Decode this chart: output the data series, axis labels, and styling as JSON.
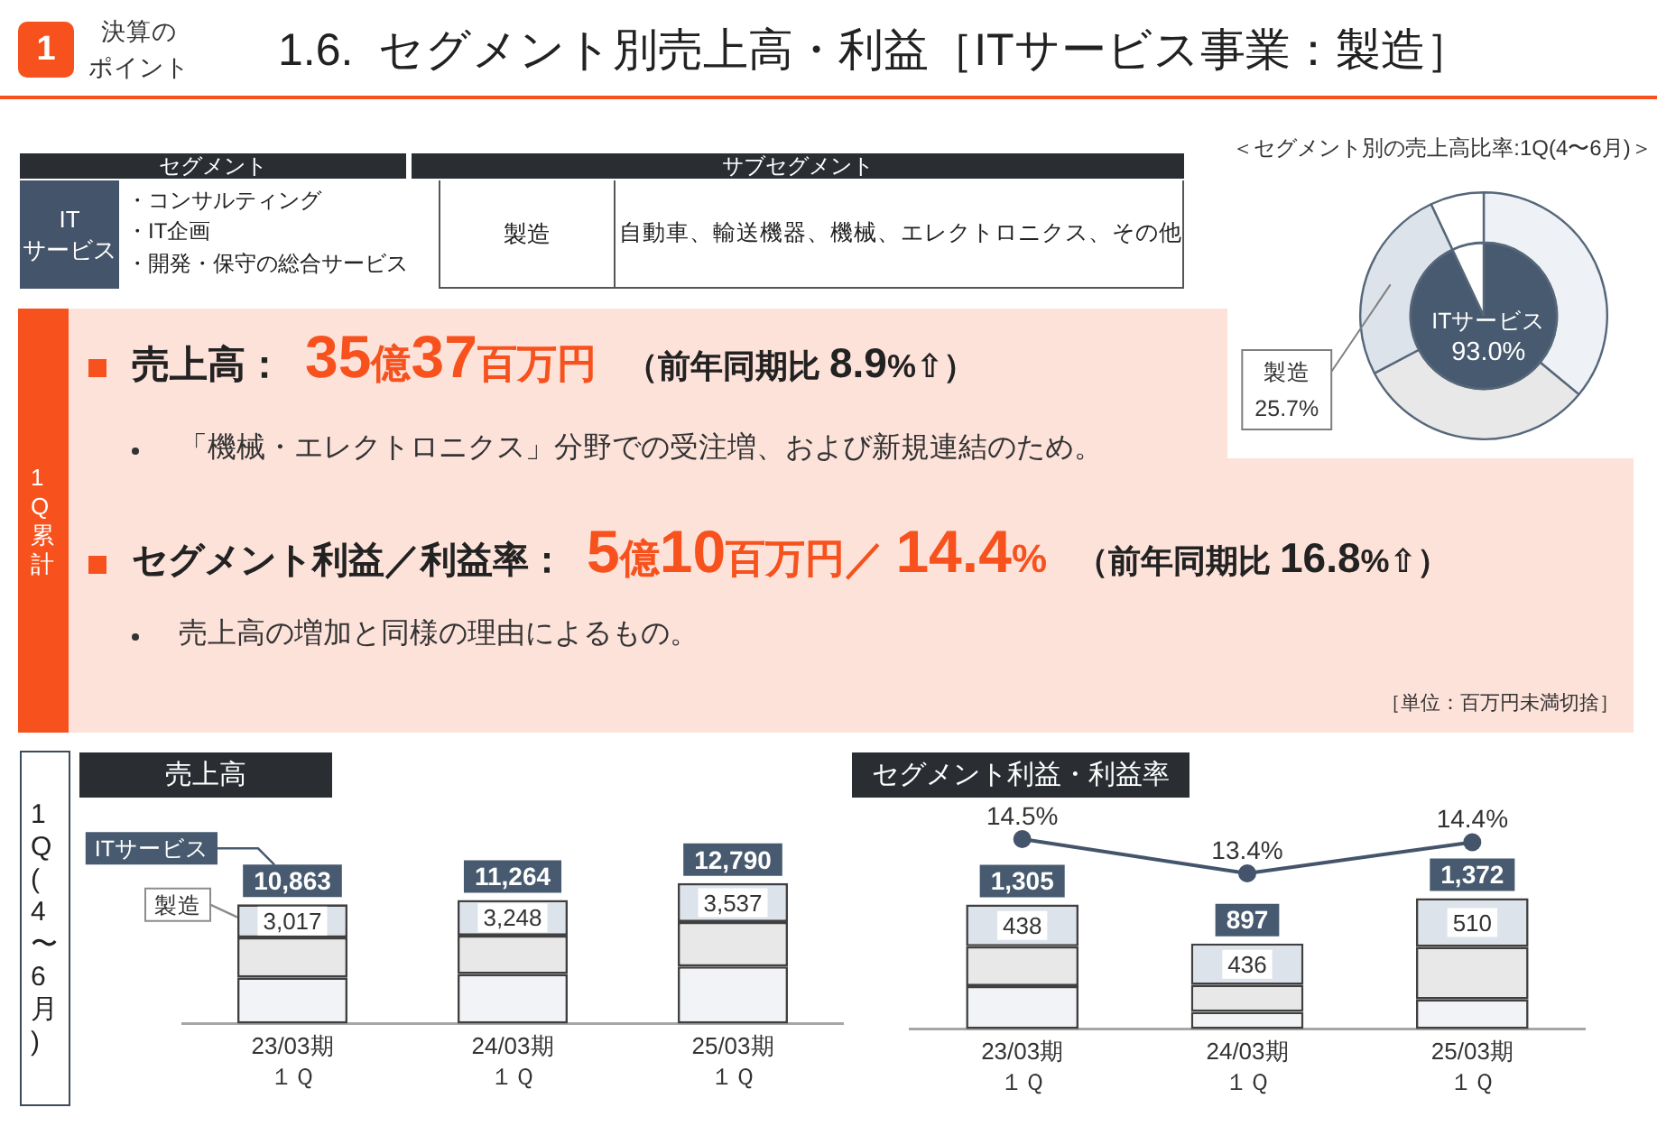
{
  "chart_data": [
    {
      "type": "other",
      "title": "1.6.  セグメント別売上高・利益［ITサービス事業：製造］",
      "annotations": [
        "1",
        "決算の",
        "ポイント"
      ]
    },
    {
      "type": "other",
      "annotations": [
        "セグメント",
        "サブセグメント",
        "IT\nサービス",
        "・コンサルティング",
        "・IT企画",
        "・開発・保守の総合サービス",
        "製造",
        "自動車、輸送機器、機械、エレクトロニクス、その他"
      ]
    },
    {
      "type": "other",
      "annotations": [
        "1Q累計",
        "売上高：",
        "35億37百万円",
        "（前年同期比 8.9%⇧）",
        "「機械・エレクトロニクス」分野での受注増、および新規連結のため。",
        "セグメント利益／利益率：",
        "5億10百万円／ 14.4%",
        "（前年同期比 16.8%⇧）",
        "売上高の増加と同様の理由によるもの。",
        "［単位：百万円未満切捨］"
      ]
    },
    {
      "type": "donut",
      "title": "＜セグメント別の売上高比率:1Q(4〜6月)＞",
      "categories": [
        null,
        null,
        "製造",
        null
      ],
      "values": [
        36.0,
        31.3,
        25.7,
        7.0
      ],
      "colors": [
        "#eef1f5",
        "#e8e8e8",
        "#dde3ea",
        "#ffffff"
      ],
      "value_labels": [
        null,
        null,
        "25.7%",
        null
      ]
    },
    {
      "type": "pie",
      "categories": [
        "ITサービス",
        null
      ],
      "values": [
        93.0,
        7.0
      ],
      "colors": [
        "#475a6f",
        "#ffffff"
      ],
      "value_labels": [
        "93.0%",
        null
      ]
    },
    {
      "type": "bar",
      "title": "売上高",
      "ylabel": "1Q(4〜6月)",
      "categories": [
        "23/03期１Ｑ",
        "24/03期１Ｑ",
        "25/03期１Ｑ"
      ],
      "stacked": true,
      "series": [
        {
          "color": "#f1f3f6",
          "values": [
            4200,
            4500,
            5200
          ]
        },
        {
          "color": "#e8e8e8",
          "values": [
            3646,
            3516,
            4053
          ]
        },
        {
          "name": "製造",
          "color": "#dde3ea",
          "values": [
            3017,
            3248,
            3537
          ],
          "value_labels": [
            "3,017",
            "3,248",
            "3,537"
          ]
        }
      ],
      "totals": [
        "10,863",
        "11,264",
        "12,790"
      ],
      "annotations": [
        "ITサービス"
      ],
      "tick_labels": "x"
    },
    {
      "type": "line",
      "title": "セグメント利益・利益率",
      "categories": [
        null,
        null,
        null
      ],
      "series": [
        {
          "color": "#44546a",
          "values": [
            14.5,
            13.4,
            14.4
          ],
          "value_labels": [
            "14.5%",
            "13.4%",
            "14.4%"
          ]
        }
      ],
      "marker": "circle",
      "tick_labels": false
    },
    {
      "type": "bar",
      "categories": [
        "23/03期１Ｑ",
        "24/03期１Ｑ",
        "25/03期１Ｑ"
      ],
      "stacked": true,
      "series": [
        {
          "color": "#f1f3f6",
          "values": [
            450,
            180,
            310
          ]
        },
        {
          "color": "#e8e8e8",
          "values": [
            417,
            281,
            552
          ]
        },
        {
          "color": "#dde3ea",
          "values": [
            438,
            436,
            510
          ],
          "value_labels": [
            "438",
            "436",
            "510"
          ]
        }
      ],
      "totals": [
        "1,305",
        "897",
        "1,372"
      ],
      "tick_labels": "x"
    }
  ]
}
